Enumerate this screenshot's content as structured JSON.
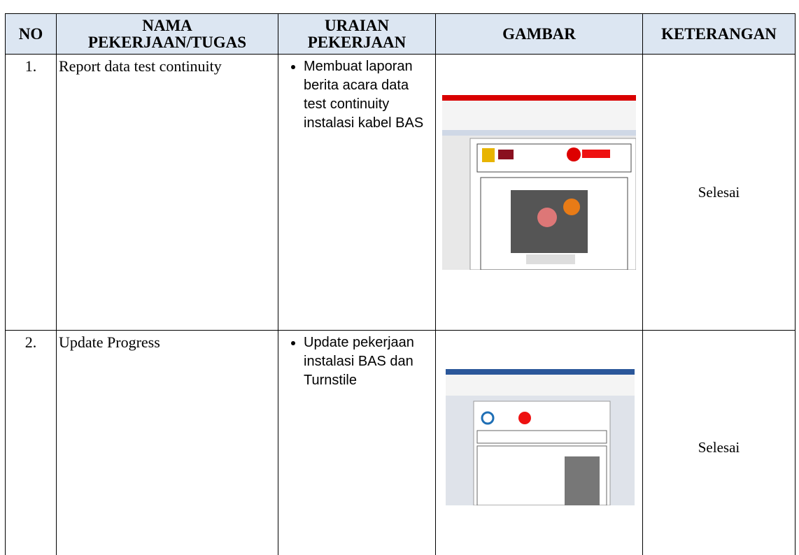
{
  "table": {
    "headers": [
      "NO",
      "NAMA PEKERJAAN/TUGAS",
      "URAIAN PEKERJAAN",
      "GAMBAR",
      "KETERANGAN"
    ],
    "rows": [
      {
        "no": "1.",
        "task": "Report data test continuity",
        "description": "Membuat laporan berita acara data test continuity instalasi kabel BAS",
        "status": "Selesai"
      },
      {
        "no": "2.",
        "task": "Update Progress",
        "description": "Update pekerjaan instalasi BAS dan Turnstile",
        "status": "Selesai"
      }
    ]
  }
}
